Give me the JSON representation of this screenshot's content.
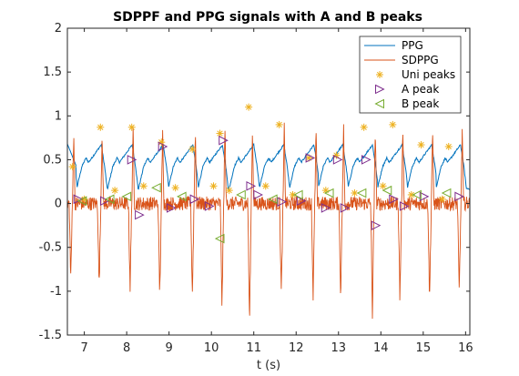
{
  "chart_data": {
    "type": "line",
    "title": "SDPPF and PPG signals with A and B peaks",
    "xlabel": "t (s)",
    "ylabel": "",
    "xlim": [
      6.6,
      16.1
    ],
    "ylim": [
      -1.5,
      2
    ],
    "xticks": [
      7,
      8,
      9,
      10,
      11,
      12,
      13,
      14,
      15,
      16
    ],
    "xtick_labels": [
      "7",
      "8",
      "9",
      "10",
      "11",
      "12",
      "13",
      "14",
      "15",
      "16"
    ],
    "yticks": [
      -1.5,
      -1,
      -0.5,
      0,
      0.5,
      1,
      1.5,
      2
    ],
    "ytick_labels": [
      "-1.5",
      "-1",
      "-0.5",
      "0",
      "0.5",
      "1",
      "1.5",
      "2"
    ],
    "grid": false,
    "legend_position": "top-right",
    "colors": {
      "ppg": "#0072bd",
      "sdppg": "#d95319",
      "uni_peaks": "#edb120",
      "a_peak": "#7e2f8e",
      "b_peak": "#77ac30"
    },
    "beat_onsets": [
      6.82,
      7.55,
      8.28,
      8.98,
      9.68,
      10.42,
      11.13,
      11.84,
      12.52,
      13.22,
      13.92,
      14.62,
      15.3
    ],
    "series": [
      {
        "name": "PPG",
        "description_points": [
          [
            6.6,
            0.68
          ],
          [
            6.7,
            0.5
          ],
          [
            6.8,
            0.42
          ],
          [
            6.9,
            0.55
          ],
          [
            7.3,
            0.52
          ],
          [
            7.45,
            0.32
          ],
          [
            7.55,
            0.2
          ],
          [
            7.7,
            0.35
          ],
          [
            8.0,
            0.62
          ],
          [
            8.1,
            0.57
          ],
          [
            8.2,
            0.3
          ],
          [
            8.3,
            0.18
          ],
          [
            8.5,
            0.4
          ],
          [
            8.8,
            0.67
          ],
          [
            8.95,
            0.3
          ],
          [
            9.05,
            0.17
          ],
          [
            9.3,
            0.45
          ],
          [
            9.55,
            0.65
          ],
          [
            9.7,
            0.25
          ],
          [
            9.8,
            0.15
          ],
          [
            10.1,
            0.5
          ],
          [
            10.3,
            0.75
          ],
          [
            10.45,
            0.28
          ],
          [
            10.55,
            0.16
          ],
          [
            10.85,
            0.55
          ],
          [
            11.05,
            0.68
          ],
          [
            11.2,
            0.28
          ],
          [
            11.3,
            0.15
          ],
          [
            11.6,
            0.55
          ],
          [
            11.8,
            0.7
          ],
          [
            11.95,
            0.28
          ],
          [
            12.05,
            0.15
          ],
          [
            12.3,
            0.5
          ],
          [
            12.55,
            0.67
          ],
          [
            12.65,
            0.28
          ],
          [
            12.75,
            0.14
          ],
          [
            13.05,
            0.5
          ],
          [
            13.25,
            0.68
          ],
          [
            13.4,
            0.25
          ],
          [
            13.5,
            0.13
          ],
          [
            13.8,
            0.5
          ],
          [
            13.95,
            0.7
          ],
          [
            14.1,
            0.25
          ],
          [
            14.2,
            0.12
          ],
          [
            14.5,
            0.5
          ],
          [
            14.7,
            0.67
          ],
          [
            14.85,
            0.25
          ],
          [
            14.95,
            0.13
          ],
          [
            15.2,
            0.5
          ],
          [
            15.4,
            0.67
          ],
          [
            15.55,
            0.25
          ],
          [
            15.65,
            0.12
          ],
          [
            15.9,
            0.55
          ],
          [
            16.1,
            0.72
          ]
        ]
      },
      {
        "name": "SDPPG",
        "spikes": [
          [
            6.68,
            -0.82
          ],
          [
            7.35,
            -0.95
          ],
          [
            8.08,
            -0.95
          ],
          [
            8.78,
            -1.05
          ],
          [
            9.55,
            -1.05
          ],
          [
            10.25,
            -1.18
          ],
          [
            10.9,
            -1.4
          ],
          [
            11.65,
            -1.05
          ],
          [
            12.4,
            -1.05
          ],
          [
            13.05,
            -1.05
          ],
          [
            13.8,
            -1.25
          ],
          [
            14.45,
            -1.1
          ],
          [
            15.15,
            -1.1
          ],
          [
            15.85,
            -1.05
          ]
        ]
      },
      {
        "name": "Uni peaks",
        "points": [
          [
            6.72,
            0.42
          ],
          [
            7.38,
            0.87
          ],
          [
            8.12,
            0.87
          ],
          [
            8.82,
            0.7
          ],
          [
            9.55,
            0.62
          ],
          [
            10.2,
            0.8
          ],
          [
            10.88,
            1.1
          ],
          [
            11.6,
            0.9
          ],
          [
            12.3,
            0.52
          ],
          [
            12.95,
            0.55
          ],
          [
            13.6,
            0.87
          ],
          [
            14.28,
            0.9
          ],
          [
            14.95,
            0.67
          ],
          [
            15.6,
            0.65
          ],
          [
            7.0,
            0.05
          ],
          [
            7.72,
            0.15
          ],
          [
            8.4,
            0.2
          ],
          [
            9.15,
            0.18
          ],
          [
            10.05,
            0.2
          ],
          [
            10.42,
            0.15
          ],
          [
            11.28,
            0.2
          ],
          [
            11.92,
            0.1
          ],
          [
            12.7,
            0.15
          ],
          [
            13.38,
            0.12
          ],
          [
            14.05,
            0.2
          ],
          [
            14.72,
            0.1
          ],
          [
            15.45,
            0.05
          ]
        ]
      },
      {
        "name": "A peak",
        "points": [
          [
            6.85,
            0.05
          ],
          [
            7.48,
            0.03
          ],
          [
            8.12,
            0.5
          ],
          [
            8.85,
            0.65
          ],
          [
            9.6,
            0.05
          ],
          [
            10.28,
            0.72
          ],
          [
            10.93,
            0.2
          ],
          [
            11.66,
            0.02
          ],
          [
            12.33,
            0.52
          ],
          [
            12.98,
            0.5
          ],
          [
            13.65,
            0.5
          ],
          [
            14.3,
            0.05
          ],
          [
            15.02,
            0.08
          ],
          [
            15.85,
            0.08
          ],
          [
            8.3,
            -0.13
          ],
          [
            9.05,
            -0.05
          ],
          [
            9.95,
            -0.03
          ],
          [
            11.1,
            0.1
          ],
          [
            12.12,
            0.03
          ],
          [
            12.7,
            -0.05
          ],
          [
            13.15,
            -0.05
          ],
          [
            13.88,
            -0.25
          ],
          [
            14.55,
            -0.03
          ]
        ]
      },
      {
        "name": "B peak",
        "points": [
          [
            6.95,
            0.03
          ],
          [
            7.6,
            0.05
          ],
          [
            8.0,
            0.08
          ],
          [
            8.7,
            0.18
          ],
          [
            9.3,
            0.08
          ],
          [
            10.2,
            -0.4
          ],
          [
            10.7,
            0.1
          ],
          [
            11.45,
            0.05
          ],
          [
            12.05,
            0.1
          ],
          [
            12.78,
            0.12
          ],
          [
            13.55,
            0.12
          ],
          [
            14.15,
            0.15
          ],
          [
            14.85,
            0.1
          ],
          [
            15.55,
            0.12
          ]
        ]
      }
    ]
  },
  "legend": {
    "items": [
      {
        "label": "PPG",
        "key": "ppg",
        "kind": "line"
      },
      {
        "label": "SDPPG",
        "key": "sdppg",
        "kind": "line"
      },
      {
        "label": "Uni peaks",
        "key": "uni_peaks",
        "kind": "star"
      },
      {
        "label": "A peak",
        "key": "a_peak",
        "kind": "tri-right"
      },
      {
        "label": "B peak",
        "key": "b_peak",
        "kind": "tri-left"
      }
    ]
  }
}
